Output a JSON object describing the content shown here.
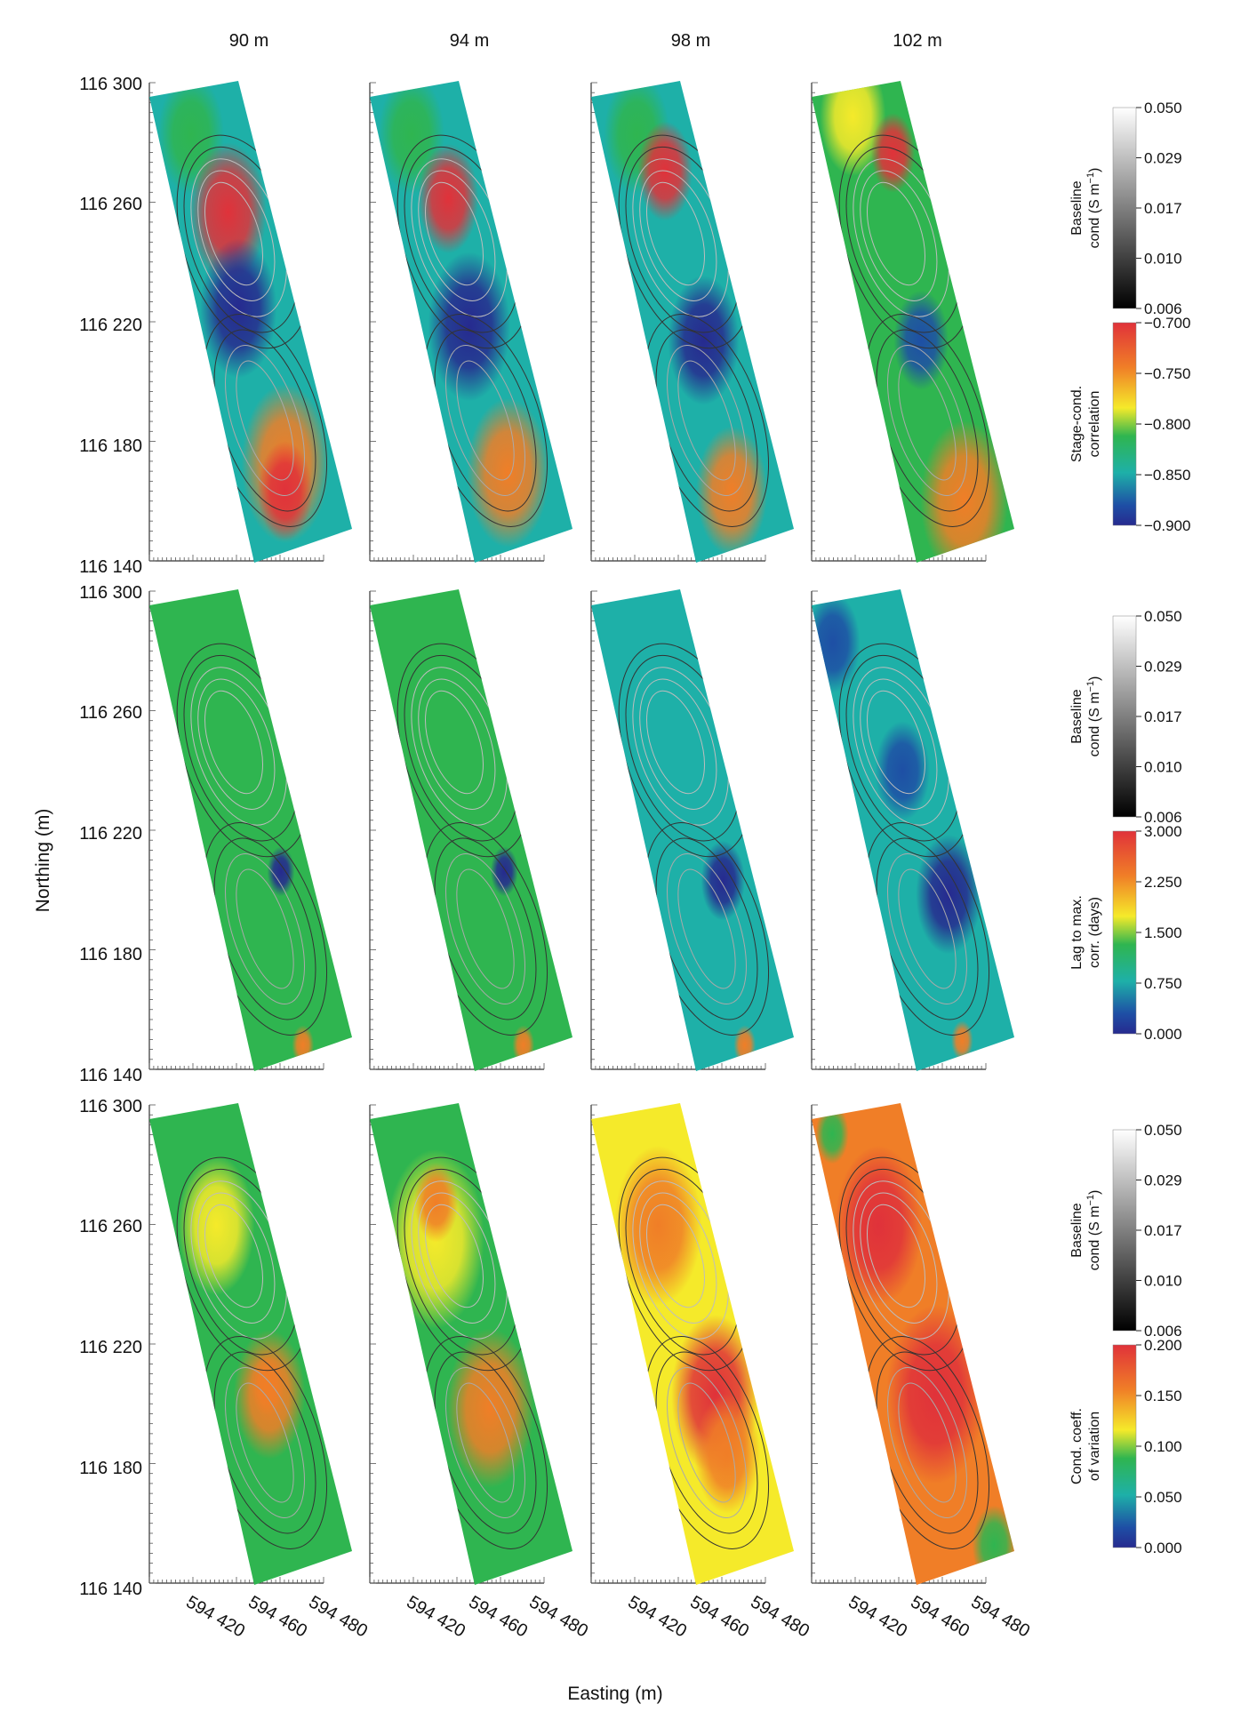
{
  "figure": {
    "depth_labels": [
      "90 m",
      "94 m",
      "98 m",
      "102 m"
    ],
    "y_axis_label": "Northing (m)",
    "x_axis_label": "Easting (m)",
    "y_ticks": [
      "116 300",
      "116 260",
      "116 220",
      "116 180",
      "116 140"
    ],
    "x_ticks": [
      "594 420",
      "594 460",
      "594 480"
    ]
  },
  "colorbars": {
    "baseline": {
      "label_line1": "Baseline",
      "label_line2": "cond (S m",
      "label_sup": "−1",
      "label_close": ")",
      "ticks": [
        "0.050",
        "0.029",
        "0.017",
        "0.010",
        "0.006"
      ]
    },
    "rows": [
      {
        "label_line1": "Stage-cond.",
        "label_line2": "correlation",
        "ticks": [
          "−0.700",
          "−0.750",
          "−0.800",
          "−0.850",
          "−0.900"
        ]
      },
      {
        "label_line1": "Lag to max.",
        "label_line2": "corr. (days)",
        "ticks": [
          "3.000",
          "2.250",
          "1.500",
          "0.750",
          "0.000"
        ]
      },
      {
        "label_line1": "Cond. coeff.",
        "label_line2": "of variation",
        "ticks": [
          "0.200",
          "0.150",
          "0.100",
          "0.050",
          "0.000"
        ]
      }
    ],
    "colors": {
      "high": "#e0323a",
      "orange": "#f07e27",
      "yellow": "#f5ea2a",
      "green": "#2fb550",
      "cyan": "#1eb0a8",
      "blue": "#1e4fa5",
      "navy": "#262a8f"
    }
  },
  "panels": [
    [
      {
        "base": "cyan",
        "blobs": [
          {
            "fx": 0.36,
            "fy": 0.1,
            "r": 0.12,
            "c": "green"
          },
          {
            "fx": 0.55,
            "fy": 0.27,
            "r": 0.14,
            "c": "high"
          },
          {
            "fx": 0.42,
            "fy": 0.48,
            "r": 0.14,
            "c": "navy"
          },
          {
            "fx": 0.52,
            "fy": 0.82,
            "r": 0.16,
            "c": "orange"
          },
          {
            "fx": 0.45,
            "fy": 0.88,
            "r": 0.1,
            "c": "high"
          }
        ]
      },
      {
        "base": "cyan",
        "blobs": [
          {
            "fx": 0.36,
            "fy": 0.1,
            "r": 0.12,
            "c": "green"
          },
          {
            "fx": 0.58,
            "fy": 0.24,
            "r": 0.11,
            "c": "high"
          },
          {
            "fx": 0.48,
            "fy": 0.52,
            "r": 0.15,
            "c": "navy"
          },
          {
            "fx": 0.52,
            "fy": 0.84,
            "r": 0.15,
            "c": "orange"
          }
        ]
      },
      {
        "base": "cyan",
        "blobs": [
          {
            "fx": 0.4,
            "fy": 0.1,
            "r": 0.12,
            "c": "green"
          },
          {
            "fx": 0.6,
            "fy": 0.18,
            "r": 0.1,
            "c": "high"
          },
          {
            "fx": 0.58,
            "fy": 0.55,
            "r": 0.13,
            "c": "navy"
          },
          {
            "fx": 0.5,
            "fy": 0.88,
            "r": 0.13,
            "c": "orange"
          }
        ]
      },
      {
        "base": "green",
        "blobs": [
          {
            "fx": 0.4,
            "fy": 0.06,
            "r": 0.12,
            "c": "yellow"
          },
          {
            "fx": 0.72,
            "fy": 0.14,
            "r": 0.08,
            "c": "high"
          },
          {
            "fx": 0.55,
            "fy": 0.55,
            "r": 0.1,
            "c": "blue"
          },
          {
            "fx": 0.6,
            "fy": 0.9,
            "r": 0.16,
            "c": "orange"
          }
        ]
      }
    ],
    [
      {
        "base": "green",
        "blobs": [
          {
            "fx": 0.72,
            "fy": 0.6,
            "r": 0.05,
            "c": "navy"
          },
          {
            "fx": 0.52,
            "fy": 0.98,
            "r": 0.04,
            "c": "orange"
          }
        ]
      },
      {
        "base": "green",
        "blobs": [
          {
            "fx": 0.75,
            "fy": 0.6,
            "r": 0.05,
            "c": "navy"
          },
          {
            "fx": 0.52,
            "fy": 0.98,
            "r": 0.04,
            "c": "orange"
          }
        ]
      },
      {
        "base": "cyan",
        "blobs": [
          {
            "fx": 0.7,
            "fy": 0.62,
            "r": 0.08,
            "c": "navy"
          },
          {
            "fx": 0.52,
            "fy": 0.98,
            "r": 0.04,
            "c": "orange"
          }
        ]
      },
      {
        "base": "cyan",
        "blobs": [
          {
            "fx": 0.15,
            "fy": 0.1,
            "r": 0.1,
            "c": "blue"
          },
          {
            "fx": 0.55,
            "fy": 0.38,
            "r": 0.1,
            "c": "blue"
          },
          {
            "fx": 0.72,
            "fy": 0.65,
            "r": 0.12,
            "c": "navy"
          },
          {
            "fx": 0.5,
            "fy": 0.97,
            "r": 0.04,
            "c": "orange"
          }
        ]
      }
    ],
    [
      {
        "base": "green",
        "blobs": [
          {
            "fx": 0.45,
            "fy": 0.25,
            "r": 0.14,
            "c": "yellow"
          },
          {
            "fx": 0.58,
            "fy": 0.62,
            "r": 0.13,
            "c": "orange"
          },
          {
            "fx": 0.58,
            "fy": 0.6,
            "r": 0.06,
            "c": "orange"
          }
        ]
      },
      {
        "base": "green",
        "blobs": [
          {
            "fx": 0.4,
            "fy": 0.28,
            "r": 0.18,
            "c": "yellow"
          },
          {
            "fx": 0.55,
            "fy": 0.65,
            "r": 0.16,
            "c": "orange"
          },
          {
            "fx": 0.5,
            "fy": 0.2,
            "r": 0.08,
            "c": "orange"
          }
        ]
      },
      {
        "base": "yellow",
        "blobs": [
          {
            "fx": 0.45,
            "fy": 0.25,
            "r": 0.16,
            "c": "orange"
          },
          {
            "fx": 0.62,
            "fy": 0.62,
            "r": 0.16,
            "c": "high"
          },
          {
            "fx": 0.6,
            "fy": 0.75,
            "r": 0.12,
            "c": "orange"
          }
        ]
      },
      {
        "base": "orange",
        "blobs": [
          {
            "fx": 0.45,
            "fy": 0.25,
            "r": 0.16,
            "c": "high"
          },
          {
            "fx": 0.62,
            "fy": 0.62,
            "r": 0.18,
            "c": "high"
          },
          {
            "fx": 0.85,
            "fy": 0.95,
            "r": 0.08,
            "c": "green"
          },
          {
            "fx": 0.2,
            "fy": 0.05,
            "r": 0.06,
            "c": "green"
          }
        ]
      }
    ]
  ]
}
